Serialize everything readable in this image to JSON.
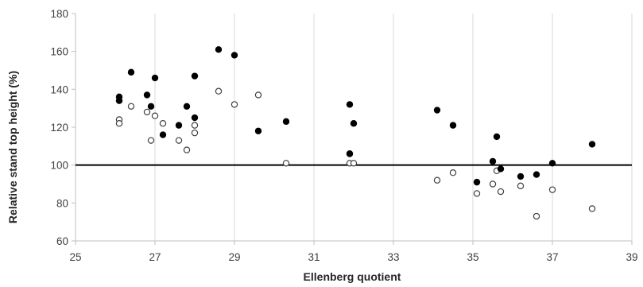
{
  "chart_data": {
    "type": "scatter",
    "title": "",
    "xlabel": "Ellenberg quotient",
    "ylabel": "Relative stand top height (%)",
    "xlim": [
      25,
      39
    ],
    "ylim": [
      60,
      180
    ],
    "xticks": [
      25,
      27,
      29,
      31,
      33,
      35,
      37,
      39
    ],
    "yticks": [
      60,
      80,
      100,
      120,
      140,
      160,
      180
    ],
    "grid": "vertical",
    "legend": "none",
    "reference_line": {
      "y": 100
    },
    "colors": {
      "filled": "#000000",
      "open_stroke": "#404040",
      "grid": "#d9d9d9",
      "axis": "#bfbfbf"
    },
    "series": [
      {
        "marker": "filled-circle",
        "points": [
          [
            26.1,
            136
          ],
          [
            26.1,
            134
          ],
          [
            26.4,
            149
          ],
          [
            26.8,
            137
          ],
          [
            26.9,
            131
          ],
          [
            27.0,
            146
          ],
          [
            27.2,
            116
          ],
          [
            27.6,
            121
          ],
          [
            27.8,
            131
          ],
          [
            28.0,
            147
          ],
          [
            28.0,
            125
          ],
          [
            28.6,
            161
          ],
          [
            29.0,
            158
          ],
          [
            29.6,
            118
          ],
          [
            30.3,
            123
          ],
          [
            31.9,
            132
          ],
          [
            31.9,
            106
          ],
          [
            32.0,
            122
          ],
          [
            34.1,
            129
          ],
          [
            34.5,
            121
          ],
          [
            35.1,
            91
          ],
          [
            35.5,
            102
          ],
          [
            35.6,
            115
          ],
          [
            35.7,
            98
          ],
          [
            36.2,
            94
          ],
          [
            36.6,
            95
          ],
          [
            37.0,
            101
          ],
          [
            38.0,
            111
          ]
        ]
      },
      {
        "marker": "open-circle",
        "points": [
          [
            26.1,
            124
          ],
          [
            26.1,
            122
          ],
          [
            26.4,
            131
          ],
          [
            26.8,
            128
          ],
          [
            26.9,
            113
          ],
          [
            27.0,
            126
          ],
          [
            27.2,
            122
          ],
          [
            27.6,
            113
          ],
          [
            27.8,
            108
          ],
          [
            28.0,
            121
          ],
          [
            28.0,
            117
          ],
          [
            28.6,
            139
          ],
          [
            29.0,
            132
          ],
          [
            29.6,
            137
          ],
          [
            30.3,
            101
          ],
          [
            31.9,
            106
          ],
          [
            31.9,
            101
          ],
          [
            32.0,
            101
          ],
          [
            34.1,
            92
          ],
          [
            34.5,
            96
          ],
          [
            35.1,
            85
          ],
          [
            35.5,
            90
          ],
          [
            35.6,
            97
          ],
          [
            35.7,
            86
          ],
          [
            36.2,
            89
          ],
          [
            36.6,
            73
          ],
          [
            37.0,
            87
          ],
          [
            38.0,
            77
          ]
        ]
      }
    ]
  }
}
